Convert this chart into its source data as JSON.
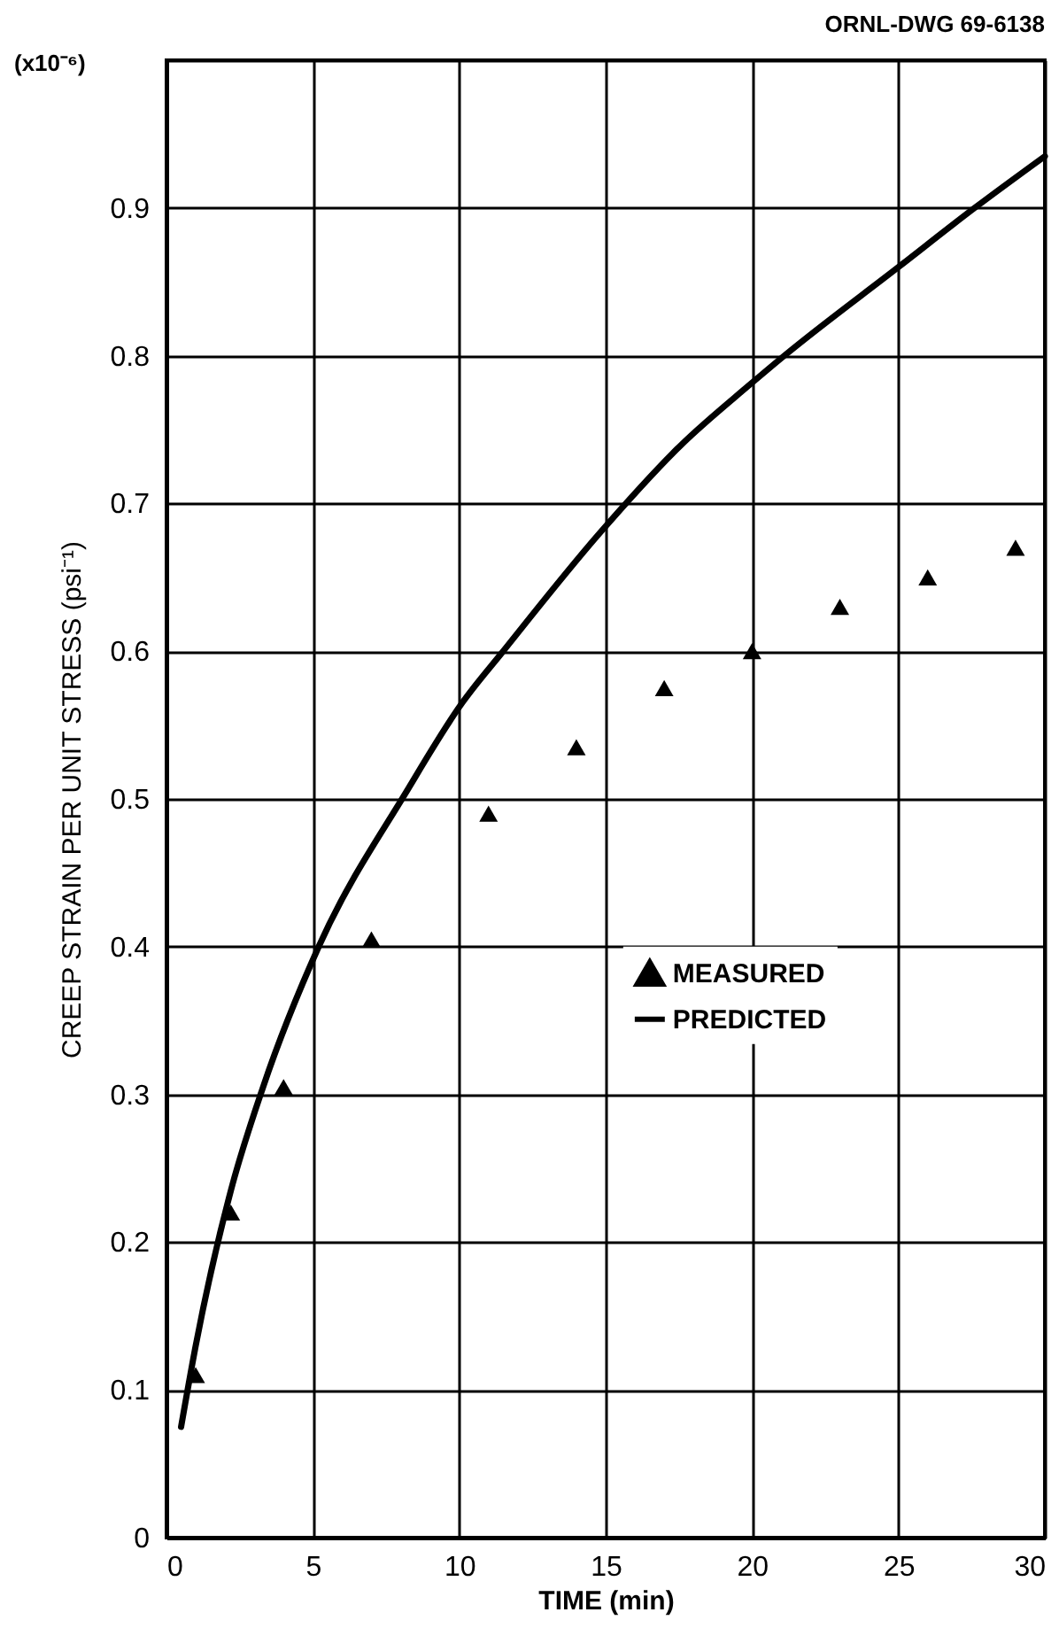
{
  "chart_data": {
    "type": "scatter",
    "xlabel": "TIME (min)",
    "ylabel": "CREEP STRAIN PER UNIT STRESS (psi⁻¹)",
    "annotations": [
      "ORNL-DWG 69-6138",
      "(x10⁻⁶)"
    ],
    "series": [
      {
        "name": "MEASURED",
        "marker": "triangle",
        "color": "#000000",
        "x": [
          1,
          2.2,
          4,
          7,
          11,
          14,
          17,
          20,
          23,
          26,
          29
        ],
        "values": [
          0.11,
          0.22,
          0.305,
          0.405,
          0.49,
          0.535,
          0.575,
          0.6,
          0.63,
          0.65,
          0.67
        ]
      },
      {
        "name": "PREDICTED",
        "type": "line",
        "marker": "none",
        "line_style": "solid",
        "color": "#000000",
        "x": [
          0.5,
          1,
          2.2,
          3.3,
          5.2,
          8.2,
          10.1,
          11.5,
          14.8,
          17.6,
          19.9,
          21.1,
          25,
          27.6,
          30
        ],
        "values": [
          0.075,
          0.13,
          0.235,
          0.305,
          0.4,
          0.505,
          0.565,
          0.6,
          0.68,
          0.74,
          0.78,
          0.8,
          0.86,
          0.9,
          0.935
        ]
      }
    ],
    "xlim": [
      0,
      30
    ],
    "xticks": [
      0,
      5,
      10,
      15,
      20,
      25,
      30
    ],
    "ylim": [
      0,
      1
    ],
    "yticks": [
      0,
      {
        "value": 0.1,
        "label": "0.1"
      },
      {
        "value": 0.2,
        "label": "0.2"
      },
      {
        "value": 0.3,
        "label": "0.3"
      },
      {
        "value": 0.4,
        "label": "0.4"
      },
      {
        "value": 0.5,
        "label": "0.5"
      },
      {
        "value": 0.6,
        "label": "0.6"
      },
      {
        "value": 0.7,
        "label": "0.7"
      },
      {
        "value": 0.8,
        "label": "0.8"
      },
      {
        "value": 0.9,
        "label": "0.9"
      },
      {
        "value": 1,
        "label": null
      }
    ],
    "grid": true,
    "legend": "center"
  }
}
